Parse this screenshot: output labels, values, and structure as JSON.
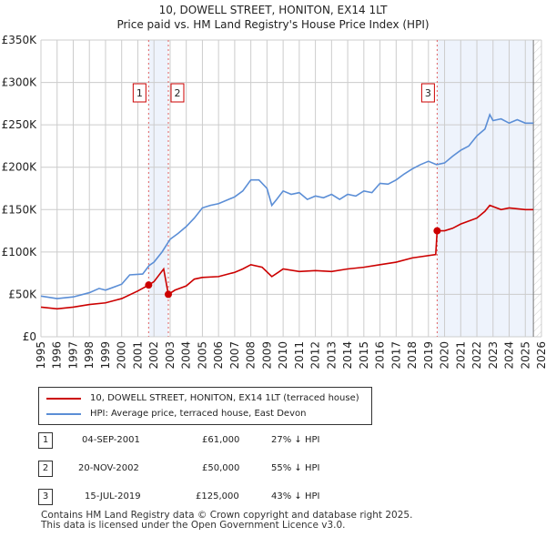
{
  "chart_data": {
    "type": "line",
    "title": "10, DOWELL STREET, HONITON, EX14 1LT",
    "subtitle": "Price paid vs. HM Land Registry's House Price Index (HPI)",
    "xlim": [
      1995,
      2026
    ],
    "ylim": [
      0,
      350000
    ],
    "yticks": [
      {
        "v": 0,
        "l": "£0"
      },
      {
        "v": 50000,
        "l": "£50K"
      },
      {
        "v": 100000,
        "l": "£100K"
      },
      {
        "v": 150000,
        "l": "£150K"
      },
      {
        "v": 200000,
        "l": "£200K"
      },
      {
        "v": 250000,
        "l": "£250K"
      },
      {
        "v": 300000,
        "l": "£300K"
      },
      {
        "v": 350000,
        "l": "£350K"
      }
    ],
    "xticks": [
      "1995",
      "1996",
      "1997",
      "1998",
      "1999",
      "2000",
      "2001",
      "2002",
      "2003",
      "2004",
      "2005",
      "2006",
      "2007",
      "2008",
      "2009",
      "2010",
      "2011",
      "2012",
      "2013",
      "2014",
      "2015",
      "2016",
      "2017",
      "2018",
      "2019",
      "2020",
      "2021",
      "2022",
      "2023",
      "2024",
      "2025",
      "2026"
    ],
    "series": [
      {
        "name": "10, DOWELL STREET, HONITON, EX14 1LT (terraced house)",
        "color": "#cc0000",
        "points": [
          [
            1995,
            35
          ],
          [
            1996,
            33
          ],
          [
            1997,
            35
          ],
          [
            1998,
            38
          ],
          [
            1999,
            40
          ],
          [
            2000,
            45
          ],
          [
            2001,
            54
          ],
          [
            2001.67,
            61
          ],
          [
            2002,
            65
          ],
          [
            2002.6,
            80
          ],
          [
            2002.89,
            50
          ],
          [
            2003.3,
            55
          ],
          [
            2004,
            60
          ],
          [
            2004.5,
            68
          ],
          [
            2005,
            70
          ],
          [
            2006,
            71
          ],
          [
            2007,
            76
          ],
          [
            2007.5,
            80
          ],
          [
            2008,
            85
          ],
          [
            2008.7,
            82
          ],
          [
            2009.3,
            71
          ],
          [
            2009.7,
            76
          ],
          [
            2010,
            80
          ],
          [
            2011,
            77
          ],
          [
            2012,
            78
          ],
          [
            2013,
            77
          ],
          [
            2014,
            80
          ],
          [
            2015,
            82
          ],
          [
            2016,
            85
          ],
          [
            2017,
            88
          ],
          [
            2018,
            93
          ],
          [
            2019.45,
            97
          ],
          [
            2019.54,
            125
          ],
          [
            2020,
            125
          ],
          [
            2020.5,
            128
          ],
          [
            2021,
            133
          ],
          [
            2022,
            140
          ],
          [
            2022.5,
            148
          ],
          [
            2022.8,
            155
          ],
          [
            2023.5,
            150
          ],
          [
            2024,
            152
          ],
          [
            2025,
            150
          ],
          [
            2025.5,
            150
          ]
        ]
      },
      {
        "name": "HPI: Average price, terraced house, East Devon",
        "color": "#5b8ed6",
        "points": [
          [
            1995,
            48
          ],
          [
            1996,
            45
          ],
          [
            1997,
            47
          ],
          [
            1998,
            52
          ],
          [
            1998.6,
            57
          ],
          [
            1999,
            55
          ],
          [
            2000,
            62
          ],
          [
            2000.5,
            73
          ],
          [
            2001.3,
            74
          ],
          [
            2001.7,
            84
          ],
          [
            2002,
            88
          ],
          [
            2002.5,
            100
          ],
          [
            2003,
            115
          ],
          [
            2003.5,
            122
          ],
          [
            2004,
            130
          ],
          [
            2004.5,
            140
          ],
          [
            2005,
            152
          ],
          [
            2005.5,
            155
          ],
          [
            2006,
            157
          ],
          [
            2007,
            165
          ],
          [
            2007.5,
            172
          ],
          [
            2008,
            185
          ],
          [
            2008.5,
            185
          ],
          [
            2009,
            175
          ],
          [
            2009.3,
            155
          ],
          [
            2009.6,
            162
          ],
          [
            2010,
            172
          ],
          [
            2010.5,
            168
          ],
          [
            2011,
            170
          ],
          [
            2011.5,
            162
          ],
          [
            2012,
            166
          ],
          [
            2012.5,
            164
          ],
          [
            2013,
            168
          ],
          [
            2013.5,
            162
          ],
          [
            2014,
            168
          ],
          [
            2014.5,
            166
          ],
          [
            2015,
            172
          ],
          [
            2015.5,
            170
          ],
          [
            2016,
            181
          ],
          [
            2016.5,
            180
          ],
          [
            2017,
            185
          ],
          [
            2017.5,
            192
          ],
          [
            2018,
            198
          ],
          [
            2018.5,
            203
          ],
          [
            2019,
            207
          ],
          [
            2019.5,
            203
          ],
          [
            2020,
            205
          ],
          [
            2020.5,
            213
          ],
          [
            2021,
            220
          ],
          [
            2021.5,
            225
          ],
          [
            2022,
            237
          ],
          [
            2022.5,
            245
          ],
          [
            2022.8,
            262
          ],
          [
            2023,
            255
          ],
          [
            2023.5,
            257
          ],
          [
            2024,
            252
          ],
          [
            2024.5,
            256
          ],
          [
            2025,
            252
          ],
          [
            2025.5,
            252
          ]
        ]
      }
    ],
    "sales": [
      {
        "n": "1",
        "x": 2001.67,
        "y": 61
      },
      {
        "n": "2",
        "x": 2002.89,
        "y": 50
      },
      {
        "n": "3",
        "x": 2019.54,
        "y": 125
      }
    ],
    "shaded": [
      [
        2001.67,
        2002.89
      ],
      [
        2019.54,
        2025.5
      ]
    ],
    "forecast_from": 2025.5
  },
  "legend": [
    "10, DOWELL STREET, HONITON, EX14 1LT (terraced house)",
    "HPI: Average price, terraced house, East Devon"
  ],
  "transactions": [
    {
      "n": "1",
      "date": "04-SEP-2001",
      "price": "£61,000",
      "hpi": "27% ↓ HPI"
    },
    {
      "n": "2",
      "date": "20-NOV-2002",
      "price": "£50,000",
      "hpi": "55% ↓ HPI"
    },
    {
      "n": "3",
      "date": "15-JUL-2019",
      "price": "£125,000",
      "hpi": "43% ↓ HPI"
    }
  ],
  "footer": [
    "Contains HM Land Registry data © Crown copyright and database right 2025.",
    "This data is licensed under the Open Government Licence v3.0."
  ]
}
